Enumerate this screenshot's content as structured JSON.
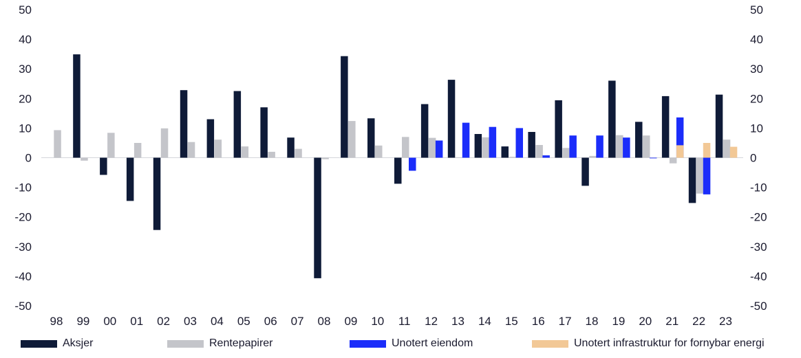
{
  "chart_data": {
    "type": "bar",
    "categories": [
      "98",
      "99",
      "00",
      "01",
      "02",
      "03",
      "04",
      "05",
      "06",
      "07",
      "08",
      "09",
      "10",
      "11",
      "12",
      "13",
      "14",
      "15",
      "16",
      "17",
      "18",
      "19",
      "20",
      "21",
      "22",
      "23"
    ],
    "ylim": [
      -50,
      50
    ],
    "yticks": [
      50,
      40,
      30,
      20,
      10,
      0,
      -10,
      -20,
      -30,
      -40,
      -50
    ],
    "grid": false,
    "legend_position": "bottom",
    "series": [
      {
        "name": "Aksjer",
        "color": "#0f1b38",
        "values": [
          null,
          34.9,
          -5.8,
          -14.6,
          -24.4,
          22.8,
          13.0,
          22.5,
          17.0,
          6.8,
          -40.7,
          34.3,
          13.3,
          -8.8,
          18.1,
          26.3,
          8.0,
          3.8,
          8.7,
          19.4,
          -9.5,
          26.0,
          12.1,
          20.8,
          -15.3,
          21.3
        ]
      },
      {
        "name": "Rentepapirer",
        "color": "#c4c5ca",
        "values": [
          9.3,
          -1.0,
          8.4,
          5.0,
          9.9,
          5.3,
          6.1,
          3.8,
          2.0,
          3.0,
          -0.5,
          12.4,
          4.1,
          7.0,
          6.7,
          0.1,
          6.9,
          0.3,
          4.3,
          3.3,
          0.6,
          7.6,
          7.5,
          -1.9,
          -12.1,
          6.1
        ]
      },
      {
        "name": "Unotert eiendom",
        "color": "#1b2dfa",
        "values": [
          null,
          null,
          null,
          null,
          null,
          null,
          null,
          null,
          null,
          null,
          null,
          null,
          null,
          -4.4,
          5.8,
          11.8,
          10.4,
          10.0,
          0.8,
          7.5,
          7.5,
          6.8,
          -0.2,
          13.6,
          -12.4,
          null
        ]
      },
      {
        "name": "Unotert infrastruktur for fornybar energi",
        "color": "#f2c896",
        "values": [
          null,
          null,
          null,
          null,
          null,
          null,
          null,
          null,
          null,
          null,
          null,
          null,
          null,
          null,
          null,
          null,
          null,
          null,
          null,
          null,
          null,
          null,
          null,
          4.2,
          5.0,
          3.7
        ]
      }
    ]
  }
}
